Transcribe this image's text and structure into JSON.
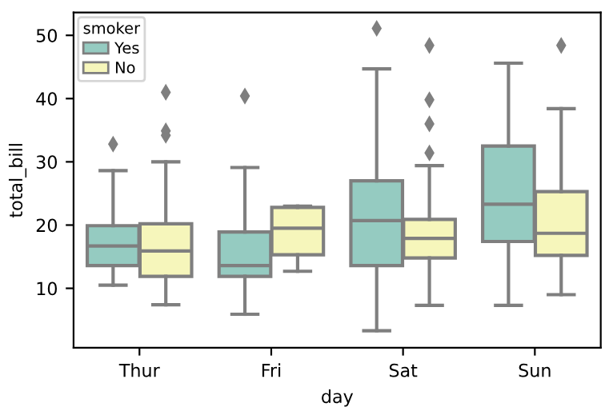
{
  "chart_data": {
    "type": "box",
    "xlabel": "day",
    "ylabel": "total_bill",
    "legend_title": "smoker",
    "legend": "top left",
    "grid": false,
    "categories": [
      "Thur",
      "Fri",
      "Sat",
      "Sun"
    ],
    "ylim": [
      0.6,
      53.6
    ],
    "yticks": [
      10,
      20,
      30,
      40,
      50
    ],
    "series": [
      {
        "name": "Yes",
        "color": "#95cbc1",
        "boxes": [
          {
            "low": 10.5,
            "q1": 13.6,
            "median": 16.7,
            "q3": 19.9,
            "high": 28.6,
            "outliers": [
              32.8
            ]
          },
          {
            "low": 5.9,
            "q1": 11.9,
            "median": 13.6,
            "q3": 18.9,
            "high": 29.1,
            "outliers": [
              40.4
            ]
          },
          {
            "low": 3.3,
            "q1": 13.6,
            "median": 20.7,
            "q3": 27.0,
            "high": 44.7,
            "outliers": [
              51.1
            ]
          },
          {
            "low": 7.3,
            "q1": 17.4,
            "median": 23.3,
            "q3": 32.5,
            "high": 45.6
          }
        ]
      },
      {
        "name": "No",
        "color": "#f6f6bb",
        "boxes": [
          {
            "low": 7.4,
            "q1": 11.9,
            "median": 15.9,
            "q3": 20.2,
            "high": 30.0,
            "outliers": [
              34.2,
              34.9,
              41.0
            ]
          },
          {
            "low": 12.7,
            "q1": 15.3,
            "median": 19.5,
            "q3": 22.8,
            "high": 23.0
          },
          {
            "low": 7.3,
            "q1": 14.8,
            "median": 17.9,
            "q3": 20.9,
            "high": 29.4,
            "outliers": [
              31.4,
              36.0,
              39.8,
              48.4
            ]
          },
          {
            "low": 9.0,
            "q1": 15.2,
            "median": 18.7,
            "q3": 25.3,
            "high": 38.4,
            "outliers": [
              48.4
            ]
          }
        ]
      }
    ]
  }
}
